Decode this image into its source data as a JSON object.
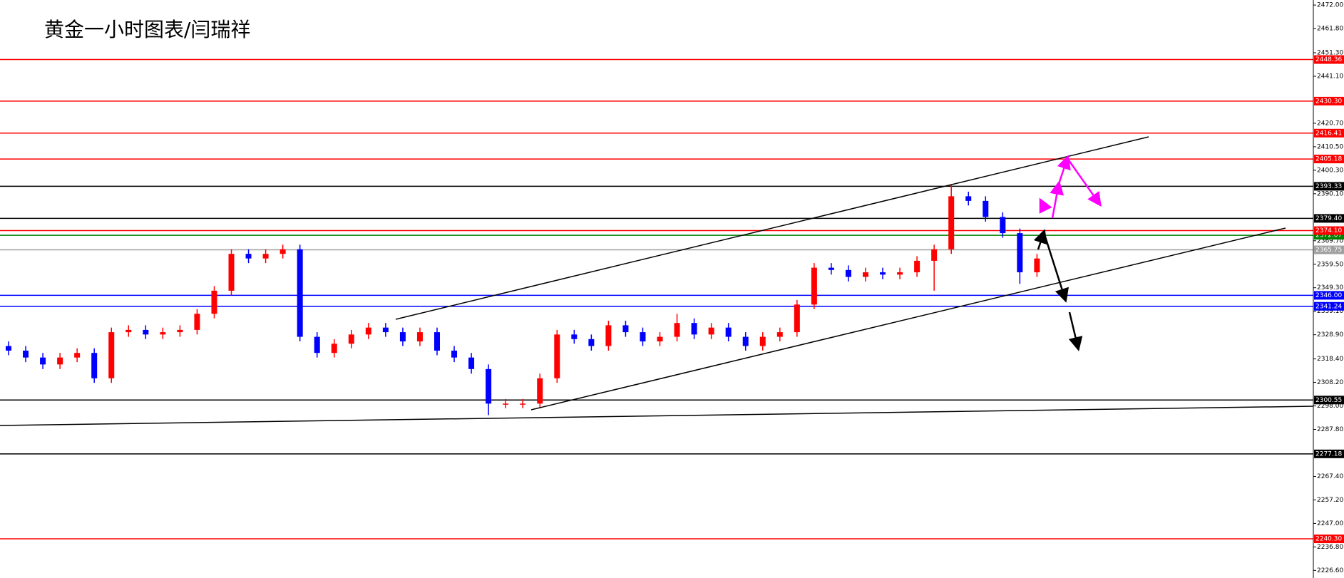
{
  "chart_data": {
    "type": "candlestick",
    "title": "黄金一小时图表/闫瑞祥",
    "ylim": [
      2223.3,
      2474.2
    ],
    "yticks": [
      {
        "value": 2472,
        "label": "2472.00"
      },
      {
        "value": 2461.8,
        "label": "2461.80"
      },
      {
        "value": 2451.3,
        "label": "2451.30"
      },
      {
        "value": 2441.1,
        "label": "2441.10"
      },
      {
        "value": 2420.7,
        "label": "2420.70"
      },
      {
        "value": 2410.5,
        "label": "2410.50"
      },
      {
        "value": 2400.3,
        "label": "2400.30"
      },
      {
        "value": 2390.1,
        "label": "2390.10"
      },
      {
        "value": 2369.7,
        "label": "2369.70"
      },
      {
        "value": 2359.5,
        "label": "2359.50"
      },
      {
        "value": 2349.3,
        "label": "2349.30"
      },
      {
        "value": 2339.1,
        "label": "2339.10"
      },
      {
        "value": 2328.9,
        "label": "2328.90"
      },
      {
        "value": 2318.4,
        "label": "2318.40"
      },
      {
        "value": 2308.2,
        "label": "2308.20"
      },
      {
        "value": 2298,
        "label": "2298.00"
      },
      {
        "value": 2287.8,
        "label": "2287.80"
      },
      {
        "value": 2267.4,
        "label": "2267.40"
      },
      {
        "value": 2257.2,
        "label": "2257.20"
      },
      {
        "value": 2247,
        "label": "2247.00"
      },
      {
        "value": 2236.8,
        "label": "2236.80"
      },
      {
        "value": 2226.6,
        "label": "2226.60"
      }
    ],
    "up_color": "#ff0000",
    "down_color": "#0000ff",
    "open": [
      2324,
      2322,
      2319,
      2316,
      2319,
      2321,
      2310,
      2330,
      2331,
      2329,
      2330,
      2331,
      2338,
      2348,
      2364,
      2362,
      2364,
      2366,
      2328,
      2321,
      2325,
      2329,
      2332,
      2330,
      2326,
      2330,
      2322,
      2319,
      2314,
      2299,
      2299,
      2299,
      2310,
      2329,
      2327,
      2324,
      2333,
      2330,
      2326,
      2328,
      2334,
      2329,
      2332,
      2328,
      2324,
      2328,
      2330,
      2342,
      2358,
      2357,
      2354,
      2356,
      2355,
      2356,
      2361,
      2366,
      2389,
      2387,
      2380,
      2373,
      2356
    ],
    "high": [
      2326,
      2324,
      2321,
      2321,
      2323,
      2323,
      2332,
      2333,
      2333,
      2332,
      2333,
      2340,
      2350,
      2366,
      2366,
      2366,
      2368,
      2368,
      2330,
      2327,
      2331,
      2334,
      2334,
      2332,
      2332,
      2332,
      2324,
      2321,
      2316,
      2301,
      2301,
      2312,
      2331,
      2331,
      2329,
      2335,
      2335,
      2332,
      2330,
      2338,
      2336,
      2334,
      2334,
      2330,
      2330,
      2332,
      2344,
      2360,
      2360,
      2359,
      2358,
      2358,
      2358,
      2363,
      2368,
      2394,
      2391,
      2389,
      2382,
      2375,
      2364
    ],
    "low": [
      2320,
      2317,
      2314,
      2314,
      2317,
      2308,
      2308,
      2328,
      2327,
      2327,
      2328,
      2329,
      2336,
      2346,
      2360,
      2360,
      2362,
      2326,
      2319,
      2319,
      2323,
      2327,
      2328,
      2324,
      2324,
      2320,
      2317,
      2312,
      2294,
      2297,
      2297,
      2297,
      2308,
      2325,
      2322,
      2322,
      2328,
      2324,
      2324,
      2326,
      2327,
      2327,
      2326,
      2322,
      2322,
      2326,
      2328,
      2340,
      2355,
      2352,
      2352,
      2353,
      2353,
      2354,
      2348,
      2364,
      2385,
      2378,
      2371,
      2351,
      2354
    ],
    "close": [
      2322,
      2319,
      2316,
      2319,
      2321,
      2310,
      2330,
      2331,
      2329,
      2330,
      2331,
      2338,
      2348,
      2364,
      2362,
      2364,
      2366,
      2328,
      2321,
      2325,
      2329,
      2332,
      2330,
      2326,
      2330,
      2322,
      2319,
      2314,
      2299,
      2299,
      2299,
      2310,
      2329,
      2327,
      2324,
      2333,
      2330,
      2326,
      2328,
      2334,
      2329,
      2332,
      2328,
      2324,
      2328,
      2330,
      2342,
      2358,
      2357,
      2354,
      2356,
      2355,
      2356,
      2361,
      2366,
      2389,
      2387,
      2380,
      2373,
      2356,
      2362
    ],
    "levels": [
      {
        "value": 2448.36,
        "label": "2448.36",
        "color": "#ff0000"
      },
      {
        "value": 2430.3,
        "label": "2430.30",
        "color": "#ff0000"
      },
      {
        "value": 2416.41,
        "label": "2416.41",
        "color": "#ff0000"
      },
      {
        "value": 2405.18,
        "label": "2405.18",
        "color": "#ff0000"
      },
      {
        "value": 2393.33,
        "label": "2393.33",
        "color": "#000000"
      },
      {
        "value": 2379.4,
        "label": "2379.40",
        "color": "#000000"
      },
      {
        "value": 2372.07,
        "label": "2372.07",
        "color": "#008000"
      },
      {
        "value": 2374.1,
        "label": "2374.10",
        "color": "#ff0000"
      },
      {
        "value": 2365.75,
        "label": "2365.75",
        "color": "#a0a0a0"
      },
      {
        "value": 2346,
        "label": "2346.00",
        "color": "#0000ff"
      },
      {
        "value": 2341.24,
        "label": "2341.24",
        "color": "#0000ff"
      },
      {
        "value": 2300.55,
        "label": "2300.55",
        "color": "#000000"
      },
      {
        "value": 2277.18,
        "label": "2277.18",
        "color": "#000000"
      },
      {
        "value": 2240.3,
        "label": "2240.30",
        "color": "#ff0000"
      }
    ]
  }
}
